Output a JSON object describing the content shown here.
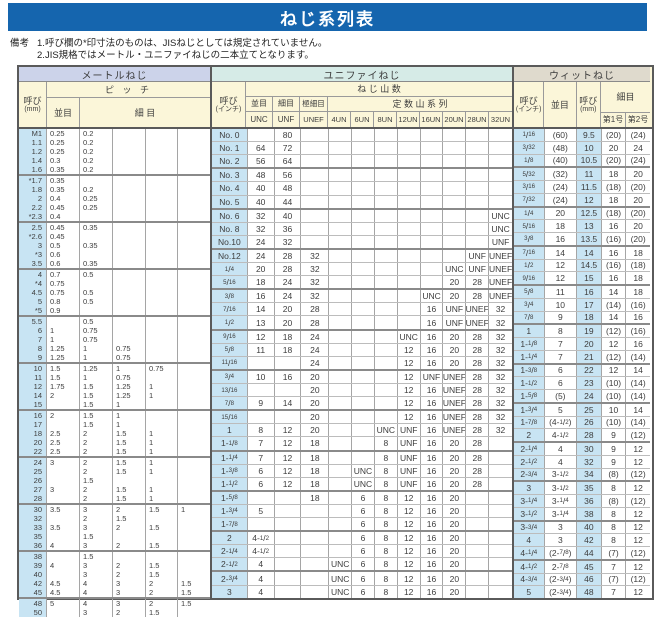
{
  "title": "ねじ系列表",
  "notes": {
    "label": "備考",
    "lines": [
      "1.呼び欄の*印寸法のものは、JISねじとしては規定されていません。",
      "2.JIS規格ではメートル・ユニファイねじの二本立てとなります。"
    ]
  },
  "colors": {
    "banner": "#1565ae",
    "metric_header": "#ccd3ea",
    "unified_header": "#d6ebe7",
    "whitworth_header": "#dfdacd",
    "header_bg": "#fbf6d9",
    "call_column_bg": "#c8e4f3"
  },
  "metric": {
    "title": "メートルねじ",
    "call_label": "呼び",
    "call_unit": "(mm)",
    "pitch_label": "ピ ッ チ",
    "coarse_label": "並目",
    "fine_label": "細 目",
    "group_sizes": [
      5,
      5,
      5,
      5,
      5,
      5,
      5,
      5,
      5,
      5,
      2
    ],
    "rows": [
      [
        "M1",
        "0.25",
        "0.2",
        "",
        "",
        ""
      ],
      [
        "1.1",
        "0.25",
        "0.2",
        "",
        "",
        ""
      ],
      [
        "1.2",
        "0.25",
        "0.2",
        "",
        "",
        ""
      ],
      [
        "1.4",
        "0.3",
        "0.2",
        "",
        "",
        ""
      ],
      [
        "1.6",
        "0.35",
        "0.2",
        "",
        "",
        ""
      ],
      [
        "*1.7",
        "0.35",
        "",
        "",
        "",
        ""
      ],
      [
        "1.8",
        "0.35",
        "0.2",
        "",
        "",
        ""
      ],
      [
        "2",
        "0.4",
        "0.25",
        "",
        "",
        ""
      ],
      [
        "2.2",
        "0.45",
        "0.25",
        "",
        "",
        ""
      ],
      [
        "*2.3",
        "0.4",
        "",
        "",
        "",
        ""
      ],
      [
        "2.5",
        "0.45",
        "0.35",
        "",
        "",
        ""
      ],
      [
        "*2.6",
        "0.45",
        "",
        "",
        "",
        ""
      ],
      [
        "3",
        "0.5",
        "0.35",
        "",
        "",
        ""
      ],
      [
        "*3",
        "0.6",
        "",
        "",
        "",
        ""
      ],
      [
        "3.5",
        "0.6",
        "0.35",
        "",
        "",
        ""
      ],
      [
        "4",
        "0.7",
        "0.5",
        "",
        "",
        ""
      ],
      [
        "*4",
        "0.75",
        "",
        "",
        "",
        ""
      ],
      [
        "4.5",
        "0.75",
        "0.5",
        "",
        "",
        ""
      ],
      [
        "5",
        "0.8",
        "0.5",
        "",
        "",
        ""
      ],
      [
        "*5",
        "0.9",
        "",
        "",
        "",
        ""
      ],
      [
        "5.5",
        "",
        "0.5",
        "",
        "",
        ""
      ],
      [
        "6",
        "1",
        "0.75",
        "",
        "",
        ""
      ],
      [
        "7",
        "1",
        "0.75",
        "",
        "",
        ""
      ],
      [
        "8",
        "1.25",
        "1",
        "0.75",
        "",
        ""
      ],
      [
        "9",
        "1.25",
        "1",
        "0.75",
        "",
        ""
      ],
      [
        "10",
        "1.5",
        "1.25",
        "1",
        "0.75",
        ""
      ],
      [
        "11",
        "1.5",
        "1",
        "0.75",
        "",
        ""
      ],
      [
        "12",
        "1.75",
        "1.5",
        "1.25",
        "1",
        ""
      ],
      [
        "14",
        "2",
        "1.5",
        "1.25",
        "1",
        ""
      ],
      [
        "15",
        "",
        "1.5",
        "1",
        "",
        ""
      ],
      [
        "16",
        "2",
        "1.5",
        "1",
        "",
        ""
      ],
      [
        "17",
        "",
        "1.5",
        "1",
        "",
        ""
      ],
      [
        "18",
        "2.5",
        "2",
        "1.5",
        "1",
        ""
      ],
      [
        "20",
        "2.5",
        "2",
        "1.5",
        "1",
        ""
      ],
      [
        "22",
        "2.5",
        "2",
        "1.5",
        "1",
        ""
      ],
      [
        "24",
        "3",
        "2",
        "1.5",
        "1",
        ""
      ],
      [
        "25",
        "",
        "2",
        "1.5",
        "1",
        ""
      ],
      [
        "26",
        "",
        "1.5",
        "",
        "",
        ""
      ],
      [
        "27",
        "3",
        "2",
        "1.5",
        "1",
        ""
      ],
      [
        "28",
        "",
        "2",
        "1.5",
        "1",
        ""
      ],
      [
        "30",
        "3.5",
        "3",
        "2",
        "1.5",
        "1"
      ],
      [
        "32",
        "",
        "2",
        "1.5",
        "",
        ""
      ],
      [
        "33",
        "3.5",
        "3",
        "2",
        "1.5",
        ""
      ],
      [
        "35",
        "",
        "1.5",
        "",
        "",
        ""
      ],
      [
        "36",
        "4",
        "3",
        "2",
        "1.5",
        ""
      ],
      [
        "38",
        "",
        "1.5",
        "",
        "",
        ""
      ],
      [
        "39",
        "4",
        "3",
        "2",
        "1.5",
        ""
      ],
      [
        "40",
        "",
        "3",
        "2",
        "1.5",
        ""
      ],
      [
        "42",
        "4.5",
        "4",
        "3",
        "2",
        "1.5"
      ],
      [
        "45",
        "4.5",
        "4",
        "3",
        "2",
        "1.5"
      ],
      [
        "48",
        "5",
        "4",
        "3",
        "2",
        "1.5"
      ],
      [
        "50",
        "",
        "3",
        "2",
        "1.5",
        ""
      ]
    ]
  },
  "unified": {
    "title": "ユニファイねじ",
    "call_label": "呼び",
    "call_unit": "(インチ)",
    "threads_label": "ね じ 山 数",
    "coarse_label": "並目",
    "fine_label": "細目",
    "extra_fine_label": "極細目",
    "series_label": "定 数 山 系 列",
    "sub_cols": [
      "UNC",
      "UNF",
      "UNEF"
    ],
    "un_cols": [
      "4UN",
      "6UN",
      "8UN",
      "12UN",
      "16UN",
      "20UN",
      "28UN",
      "32UN"
    ],
    "group_sizes": [
      3,
      3,
      3,
      3,
      3,
      3,
      3,
      3,
      3,
      3,
      3,
      2
    ],
    "rows": [
      [
        "No. 0",
        "",
        "80",
        "",
        "",
        "",
        "",
        "",
        "",
        "",
        "",
        ""
      ],
      [
        "No. 1",
        "64",
        "72",
        "",
        "",
        "",
        "",
        "",
        "",
        "",
        "",
        ""
      ],
      [
        "No. 2",
        "56",
        "64",
        "",
        "",
        "",
        "",
        "",
        "",
        "",
        "",
        ""
      ],
      [
        "No. 3",
        "48",
        "56",
        "",
        "",
        "",
        "",
        "",
        "",
        "",
        "",
        ""
      ],
      [
        "No. 4",
        "40",
        "48",
        "",
        "",
        "",
        "",
        "",
        "",
        "",
        "",
        ""
      ],
      [
        "No. 5",
        "40",
        "44",
        "",
        "",
        "",
        "",
        "",
        "",
        "",
        "",
        ""
      ],
      [
        "No. 6",
        "32",
        "40",
        "",
        "",
        "",
        "",
        "",
        "",
        "",
        "",
        "UNC"
      ],
      [
        "No. 8",
        "32",
        "36",
        "",
        "",
        "",
        "",
        "",
        "",
        "",
        "",
        "UNC"
      ],
      [
        "No.10",
        "24",
        "32",
        "",
        "",
        "",
        "",
        "",
        "",
        "",
        "",
        "UNF"
      ],
      [
        "No.12",
        "24",
        "28",
        "32",
        "",
        "",
        "",
        "",
        "",
        "",
        "UNF",
        "UNEF"
      ],
      [
        "1/4",
        "20",
        "28",
        "32",
        "",
        "",
        "",
        "",
        "",
        "UNC",
        "UNF",
        "UNEF"
      ],
      [
        "5/16",
        "18",
        "24",
        "32",
        "",
        "",
        "",
        "",
        "",
        "20",
        "28",
        "UNEF"
      ],
      [
        "3/8",
        "16",
        "24",
        "32",
        "",
        "",
        "",
        "",
        "UNC",
        "20",
        "28",
        "UNEF"
      ],
      [
        "7/16",
        "14",
        "20",
        "28",
        "",
        "",
        "",
        "",
        "16",
        "UNF",
        "UNEF",
        "32"
      ],
      [
        "1/2",
        "13",
        "20",
        "28",
        "",
        "",
        "",
        "",
        "16",
        "UNF",
        "UNEF",
        "32"
      ],
      [
        "9/16",
        "12",
        "18",
        "24",
        "",
        "",
        "",
        "UNC",
        "16",
        "20",
        "28",
        "32"
      ],
      [
        "5/8",
        "11",
        "18",
        "24",
        "",
        "",
        "",
        "12",
        "16",
        "20",
        "28",
        "32"
      ],
      [
        "11/16",
        "",
        "",
        "24",
        "",
        "",
        "",
        "12",
        "16",
        "20",
        "28",
        "32"
      ],
      [
        "3/4",
        "10",
        "16",
        "20",
        "",
        "",
        "",
        "12",
        "UNF",
        "UNEF",
        "28",
        "32"
      ],
      [
        "13/16",
        "",
        "",
        "20",
        "",
        "",
        "",
        "12",
        "16",
        "UNEF",
        "28",
        "32"
      ],
      [
        "7/8",
        "9",
        "14",
        "20",
        "",
        "",
        "",
        "12",
        "16",
        "UNEF",
        "28",
        "32"
      ],
      [
        "15/16",
        "",
        "",
        "20",
        "",
        "",
        "",
        "12",
        "16",
        "UNEF",
        "28",
        "32"
      ],
      [
        "1",
        "8",
        "12",
        "20",
        "",
        "",
        "UNC",
        "UNF",
        "16",
        "UNEF",
        "28",
        "32"
      ],
      [
        "1-1/8",
        "7",
        "12",
        "18",
        "",
        "",
        "8",
        "UNF",
        "16",
        "20",
        "28",
        ""
      ],
      [
        "1-1/4",
        "7",
        "12",
        "18",
        "",
        "",
        "8",
        "UNF",
        "16",
        "20",
        "28",
        ""
      ],
      [
        "1-3/8",
        "6",
        "12",
        "18",
        "",
        "UNC",
        "8",
        "UNF",
        "16",
        "20",
        "28",
        ""
      ],
      [
        "1-1/2",
        "6",
        "12",
        "18",
        "",
        "UNC",
        "8",
        "UNF",
        "16",
        "20",
        "28",
        ""
      ],
      [
        "1-5/8",
        "",
        "",
        "18",
        "",
        "6",
        "8",
        "12",
        "16",
        "20",
        "",
        ""
      ],
      [
        "1-3/4",
        "5",
        "",
        "",
        "",
        "6",
        "8",
        "12",
        "16",
        "20",
        "",
        ""
      ],
      [
        "1-7/8",
        "",
        "",
        "",
        "",
        "6",
        "8",
        "12",
        "16",
        "20",
        "",
        ""
      ],
      [
        "2",
        "4-1/2",
        "",
        "",
        "",
        "6",
        "8",
        "12",
        "16",
        "20",
        "",
        ""
      ],
      [
        "2-1/4",
        "4-1/2",
        "",
        "",
        "",
        "6",
        "8",
        "12",
        "16",
        "20",
        "",
        ""
      ],
      [
        "2-1/2",
        "4",
        "",
        "",
        "UNC",
        "6",
        "8",
        "12",
        "16",
        "20",
        "",
        ""
      ],
      [
        "2-3/4",
        "4",
        "",
        "",
        "UNC",
        "6",
        "8",
        "12",
        "16",
        "20",
        "",
        ""
      ],
      [
        "3",
        "4",
        "",
        "",
        "UNC",
        "6",
        "8",
        "12",
        "16",
        "20",
        "",
        ""
      ]
    ]
  },
  "whitworth": {
    "title": "ウィットねじ",
    "call_inch_label": "呼び",
    "call_inch_unit": "(インチ)",
    "coarse_label": "並目",
    "call_mm_label": "呼び",
    "call_mm_unit": "(mm)",
    "fine_label": "細目",
    "no1_label": "第1号",
    "no2_label": "第2号",
    "group_sizes": [
      3,
      3,
      3,
      3,
      3,
      3,
      3,
      3,
      3,
      3,
      3,
      3
    ],
    "rows": [
      [
        "1/16",
        "(60)",
        "9.5",
        "(20)",
        "(24)"
      ],
      [
        "3/32",
        "(48)",
        "10",
        "20",
        "24"
      ],
      [
        "1/8",
        "(40)",
        "10.5",
        "(20)",
        "(24)"
      ],
      [
        "5/32",
        "(32)",
        "11",
        "18",
        "20"
      ],
      [
        "3/16",
        "(24)",
        "11.5",
        "(18)",
        "(20)"
      ],
      [
        "7/32",
        "(24)",
        "12",
        "18",
        "20"
      ],
      [
        "1/4",
        "20",
        "12.5",
        "(18)",
        "(20)"
      ],
      [
        "5/16",
        "18",
        "13",
        "16",
        "20"
      ],
      [
        "3/8",
        "16",
        "13.5",
        "(16)",
        "(20)"
      ],
      [
        "7/16",
        "14",
        "14",
        "16",
        "18"
      ],
      [
        "1/2",
        "12",
        "14.5",
        "(16)",
        "(18)"
      ],
      [
        "9/16",
        "12",
        "15",
        "16",
        "18"
      ],
      [
        "5/8",
        "11",
        "16",
        "14",
        "18"
      ],
      [
        "3/4",
        "10",
        "17",
        "(14)",
        "(16)"
      ],
      [
        "7/8",
        "9",
        "18",
        "14",
        "16"
      ],
      [
        "1",
        "8",
        "19",
        "(12)",
        "(16)"
      ],
      [
        "1-1/8",
        "7",
        "20",
        "12",
        "16"
      ],
      [
        "1-1/4",
        "7",
        "21",
        "(12)",
        "(14)"
      ],
      [
        "1-3/8",
        "6",
        "22",
        "12",
        "14"
      ],
      [
        "1-1/2",
        "6",
        "23",
        "(10)",
        "(14)"
      ],
      [
        "1-5/8",
        "(5)",
        "24",
        "(10)",
        "(14)"
      ],
      [
        "1-3/4",
        "5",
        "25",
        "10",
        "14"
      ],
      [
        "1-7/8",
        "(4-1/2)",
        "26",
        "(10)",
        "(14)"
      ],
      [
        "2",
        "4-1/2",
        "28",
        "9",
        "(12)"
      ],
      [
        "2-1/4",
        "4",
        "30",
        "9",
        "12"
      ],
      [
        "2-1/2",
        "4",
        "32",
        "9",
        "12"
      ],
      [
        "2-3/4",
        "3-1/2",
        "34",
        "(8)",
        "(12)"
      ],
      [
        "3",
        "3-1/2",
        "35",
        "8",
        "12"
      ],
      [
        "3-1/4",
        "3-1/4",
        "36",
        "(8)",
        "(12)"
      ],
      [
        "3-1/2",
        "3-1/4",
        "38",
        "8",
        "12"
      ],
      [
        "3-3/4",
        "3",
        "40",
        "8",
        "12"
      ],
      [
        "4",
        "3",
        "42",
        "8",
        "12"
      ],
      [
        "4-1/4",
        "(2-7/8)",
        "44",
        "(7)",
        "(12)"
      ],
      [
        "4-1/2",
        "2-7/8",
        "45",
        "7",
        "12"
      ],
      [
        "4-3/4",
        "(2-3/4)",
        "46",
        "(7)",
        "(12)"
      ],
      [
        "5",
        "(2-3/4)",
        "48",
        "7",
        "12"
      ]
    ]
  }
}
